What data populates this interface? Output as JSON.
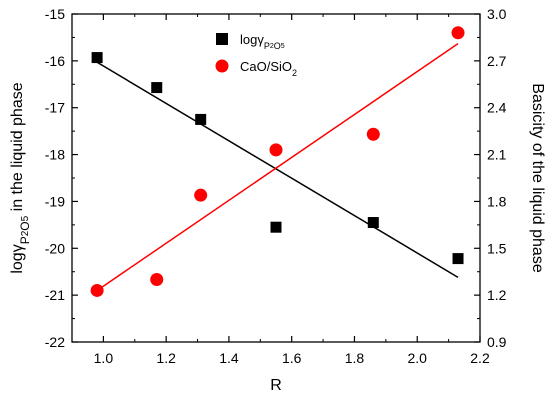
{
  "chart_data": {
    "type": "scatter",
    "x_label": "R",
    "y_left_label": {
      "prefix": "log",
      "gamma": "γ",
      "sub1": "P",
      "sub1n": "2",
      "mid": "O",
      "sub2n": "5",
      "suffix": " in the liquid phase"
    },
    "y_right_label": "Basicity of the liquid phase",
    "x_ticks": [
      "1.0",
      "1.2",
      "1.4",
      "1.6",
      "1.8",
      "2.0",
      "2.2"
    ],
    "y_left_ticks": [
      "-22",
      "-21",
      "-20",
      "-19",
      "-18",
      "-17",
      "-16",
      "-15"
    ],
    "y_right_ticks": [
      "0.9",
      "1.2",
      "1.5",
      "1.8",
      "2.1",
      "2.4",
      "2.7",
      "3.0"
    ],
    "x_range": [
      0.9,
      2.2
    ],
    "y_left_range": [
      -22,
      -15
    ],
    "y_right_range": [
      0.9,
      3.0
    ],
    "series": [
      {
        "name": "logγP2O5",
        "axis": "left",
        "marker": "square",
        "color": "#000000",
        "points": [
          {
            "x": 0.98,
            "y": -15.93
          },
          {
            "x": 1.17,
            "y": -16.57
          },
          {
            "x": 1.31,
            "y": -17.25
          },
          {
            "x": 1.55,
            "y": -19.55
          },
          {
            "x": 1.86,
            "y": -19.45
          },
          {
            "x": 2.13,
            "y": -20.22
          }
        ],
        "fit": {
          "x0": 0.98,
          "y0": -16.03,
          "x1": 2.13,
          "y1": -20.62
        }
      },
      {
        "name": "CaO/SiO2",
        "axis": "right",
        "marker": "circle",
        "color": "#ff0000",
        "points": [
          {
            "x": 0.98,
            "y": 1.23
          },
          {
            "x": 1.17,
            "y": 1.3
          },
          {
            "x": 1.31,
            "y": 1.84
          },
          {
            "x": 1.55,
            "y": 2.13
          },
          {
            "x": 1.86,
            "y": 2.23
          },
          {
            "x": 2.13,
            "y": 2.88
          }
        ],
        "fit": {
          "x0": 0.98,
          "y0": 1.23,
          "x1": 2.13,
          "y1": 2.81
        }
      }
    ],
    "legend": {
      "position": "top-center",
      "items": [
        {
          "marker": "square",
          "color": "#000000",
          "prefix": "log",
          "gamma": "γ",
          "sub": "P",
          "subn1": "2",
          "subo": "O",
          "subn2": "5"
        },
        {
          "marker": "circle",
          "color": "#ff0000",
          "text": "CaO/SiO",
          "sub": "2"
        }
      ]
    }
  }
}
